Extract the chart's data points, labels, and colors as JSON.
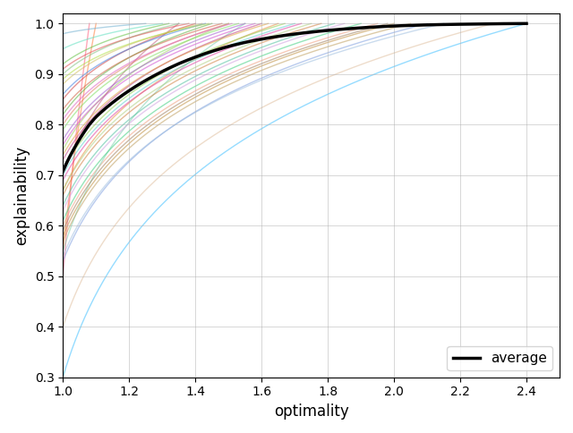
{
  "xlabel": "optimality",
  "ylabel": "explainability",
  "xlim": [
    1.0,
    2.5
  ],
  "ylim": [
    0.3,
    1.02
  ],
  "xticks": [
    1.0,
    1.2,
    1.4,
    1.6,
    1.8,
    2.0,
    2.2,
    2.4
  ],
  "yticks": [
    0.3,
    0.4,
    0.5,
    0.6,
    0.7,
    0.8,
    0.9,
    1.0
  ],
  "grid": true,
  "legend_label": "average",
  "avg_color": "#000000",
  "avg_linewidth": 2.5,
  "curve_alpha": 0.55,
  "curve_linewidth": 1.0,
  "figsize": [
    6.4,
    4.84
  ],
  "dpi": 100,
  "curves": [
    {
      "y0": 0.67,
      "x_end": 1.65,
      "color": "#e69040"
    },
    {
      "y0": 0.5,
      "x_end": 1.08,
      "color": "#ff6080"
    },
    {
      "y0": 0.3,
      "x_end": 2.4,
      "color": "#40c0ff"
    },
    {
      "y0": 0.55,
      "x_end": 1.1,
      "color": "#ff8040"
    },
    {
      "y0": 0.75,
      "x_end": 1.5,
      "color": "#a0d060"
    },
    {
      "y0": 0.7,
      "x_end": 1.35,
      "color": "#c06080"
    },
    {
      "y0": 0.82,
      "x_end": 1.45,
      "color": "#60b040"
    },
    {
      "y0": 0.6,
      "x_end": 1.95,
      "color": "#f0a080"
    },
    {
      "y0": 0.55,
      "x_end": 1.55,
      "color": "#80d0b0"
    },
    {
      "y0": 0.85,
      "x_end": 1.4,
      "color": "#d04040"
    },
    {
      "y0": 0.9,
      "x_end": 1.35,
      "color": "#80c080"
    },
    {
      "y0": 0.63,
      "x_end": 1.85,
      "color": "#d0a0e0"
    },
    {
      "y0": 0.58,
      "x_end": 2.0,
      "color": "#c09040"
    },
    {
      "y0": 0.7,
      "x_end": 1.7,
      "color": "#60d0d0"
    },
    {
      "y0": 0.8,
      "x_end": 1.5,
      "color": "#e08060"
    },
    {
      "y0": 0.67,
      "x_end": 1.75,
      "color": "#b0d080"
    },
    {
      "y0": 0.73,
      "x_end": 1.6,
      "color": "#c04080"
    },
    {
      "y0": 0.88,
      "x_end": 1.42,
      "color": "#d0c060"
    },
    {
      "y0": 0.53,
      "x_end": 2.1,
      "color": "#80a0e0"
    },
    {
      "y0": 0.4,
      "x_end": 2.3,
      "color": "#e0c0a0"
    },
    {
      "y0": 0.92,
      "x_end": 1.32,
      "color": "#60c040"
    },
    {
      "y0": 0.77,
      "x_end": 1.55,
      "color": "#a060d0"
    },
    {
      "y0": 0.83,
      "x_end": 1.48,
      "color": "#d06040"
    },
    {
      "y0": 0.61,
      "x_end": 1.9,
      "color": "#40d080"
    },
    {
      "y0": 0.69,
      "x_end": 1.72,
      "color": "#e040a0"
    },
    {
      "y0": 0.79,
      "x_end": 1.53,
      "color": "#80e060"
    },
    {
      "y0": 0.57,
      "x_end": 2.05,
      "color": "#c0a060"
    },
    {
      "y0": 0.86,
      "x_end": 1.43,
      "color": "#4080e0"
    },
    {
      "y0": 0.74,
      "x_end": 1.62,
      "color": "#e0a040"
    },
    {
      "y0": 0.95,
      "x_end": 1.3,
      "color": "#60e0c0"
    },
    {
      "y0": 0.66,
      "x_end": 1.78,
      "color": "#d08040"
    },
    {
      "y0": 0.54,
      "x_end": 2.15,
      "color": "#a0c0e0"
    },
    {
      "y0": 0.81,
      "x_end": 1.51,
      "color": "#e060c0"
    },
    {
      "y0": 0.71,
      "x_end": 1.67,
      "color": "#90d050"
    },
    {
      "y0": 0.91,
      "x_end": 1.38,
      "color": "#e05050"
    },
    {
      "y0": 0.64,
      "x_end": 1.82,
      "color": "#50c0a0"
    },
    {
      "y0": 0.76,
      "x_end": 1.58,
      "color": "#d050d0"
    },
    {
      "y0": 0.89,
      "x_end": 1.44,
      "color": "#b0e040"
    },
    {
      "y0": 0.59,
      "x_end": 1.98,
      "color": "#a08060"
    },
    {
      "y0": 0.98,
      "x_end": 1.25,
      "color": "#70b0d0"
    }
  ]
}
